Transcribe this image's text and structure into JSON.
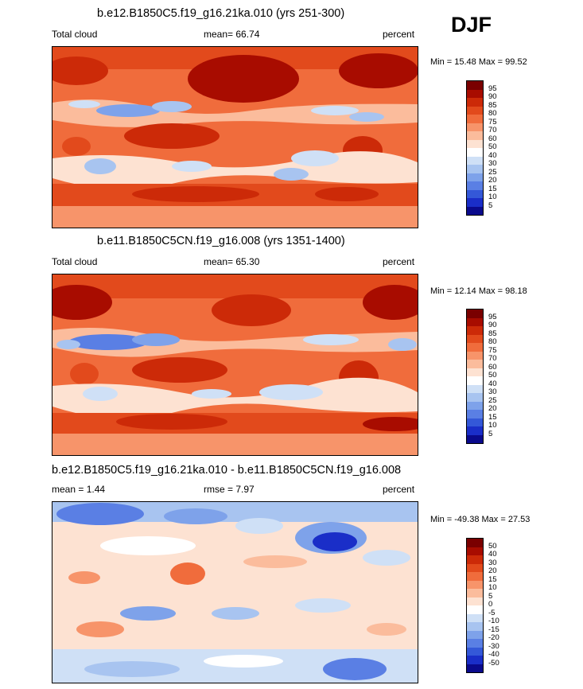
{
  "season": "DJF",
  "panels": [
    {
      "title": "b.e12.B1850C5.f19_g16.21ka.010 (yrs 251-300)",
      "left_label": "Total cloud",
      "center_label": "mean=  66.74",
      "right_label": "percent",
      "minmax": "Min =  15.48 Max =  99.52",
      "levels": [
        "95",
        "90",
        "85",
        "80",
        "75",
        "70",
        "60",
        "50",
        "40",
        "30",
        "25",
        "20",
        "15",
        "10",
        "5"
      ],
      "colors": [
        "#7a0000",
        "#a80c00",
        "#cc2a08",
        "#e24a1c",
        "#f06c3c",
        "#f7946a",
        "#fbbc9c",
        "#fde2d2",
        "#ffffff",
        "#cfe0f6",
        "#a8c4f0",
        "#7ea2ea",
        "#5a7fe4",
        "#3458d8",
        "#1a2ec8",
        "#0a0a8c"
      ]
    },
    {
      "title": "b.e11.B1850C5CN.f19_g16.008 (yrs 1351-1400)",
      "left_label": "Total cloud",
      "center_label": "mean=  65.30",
      "right_label": "percent",
      "minmax": "Min =  12.14 Max =  98.18",
      "levels": [
        "95",
        "90",
        "85",
        "80",
        "75",
        "70",
        "60",
        "50",
        "40",
        "30",
        "25",
        "20",
        "15",
        "10",
        "5"
      ],
      "colors": [
        "#7a0000",
        "#a80c00",
        "#cc2a08",
        "#e24a1c",
        "#f06c3c",
        "#f7946a",
        "#fbbc9c",
        "#fde2d2",
        "#ffffff",
        "#cfe0f6",
        "#a8c4f0",
        "#7ea2ea",
        "#5a7fe4",
        "#3458d8",
        "#1a2ec8",
        "#0a0a8c"
      ]
    },
    {
      "title": "b.e12.B1850C5.f19_g16.21ka.010 - b.e11.B1850C5CN.f19_g16.008",
      "left_label": "mean =   1.44",
      "center_label": "rmse =   7.97",
      "right_label": "percent",
      "minmax": "Min = -49.38 Max =  27.53",
      "levels": [
        "50",
        "40",
        "30",
        "20",
        "15",
        "10",
        "5",
        "0",
        "-5",
        "-10",
        "-15",
        "-20",
        "-30",
        "-40",
        "-50"
      ],
      "colors": [
        "#7a0000",
        "#a80c00",
        "#cc2a08",
        "#e24a1c",
        "#f06c3c",
        "#f7946a",
        "#fbbc9c",
        "#fde2d2",
        "#ffffff",
        "#cfe0f6",
        "#a8c4f0",
        "#7ea2ea",
        "#5a7fe4",
        "#3458d8",
        "#1a2ec8",
        "#0a0a8c"
      ]
    }
  ],
  "chart_data": [
    {
      "type": "heatmap",
      "title": "b.e12.B1850C5.f19_g16.21ka.010 (yrs 251-300)",
      "variable": "Total cloud",
      "units": "percent",
      "mean": 66.74,
      "min": 15.48,
      "max": 99.52,
      "contour_levels": [
        5,
        10,
        15,
        20,
        25,
        30,
        40,
        50,
        60,
        70,
        75,
        80,
        85,
        90,
        95
      ]
    },
    {
      "type": "heatmap",
      "title": "b.e11.B1850C5CN.f19_g16.008 (yrs 1351-1400)",
      "variable": "Total cloud",
      "units": "percent",
      "mean": 65.3,
      "min": 12.14,
      "max": 98.18,
      "contour_levels": [
        5,
        10,
        15,
        20,
        25,
        30,
        40,
        50,
        60,
        70,
        75,
        80,
        85,
        90,
        95
      ]
    },
    {
      "type": "heatmap",
      "title": "b.e12.B1850C5.f19_g16.21ka.010 - b.e11.B1850C5CN.f19_g16.008",
      "units": "percent",
      "mean": 1.44,
      "rmse": 7.97,
      "min": -49.38,
      "max": 27.53,
      "contour_levels": [
        -50,
        -40,
        -30,
        -20,
        -15,
        -10,
        -5,
        0,
        5,
        10,
        15,
        20,
        30,
        40,
        50
      ]
    }
  ]
}
